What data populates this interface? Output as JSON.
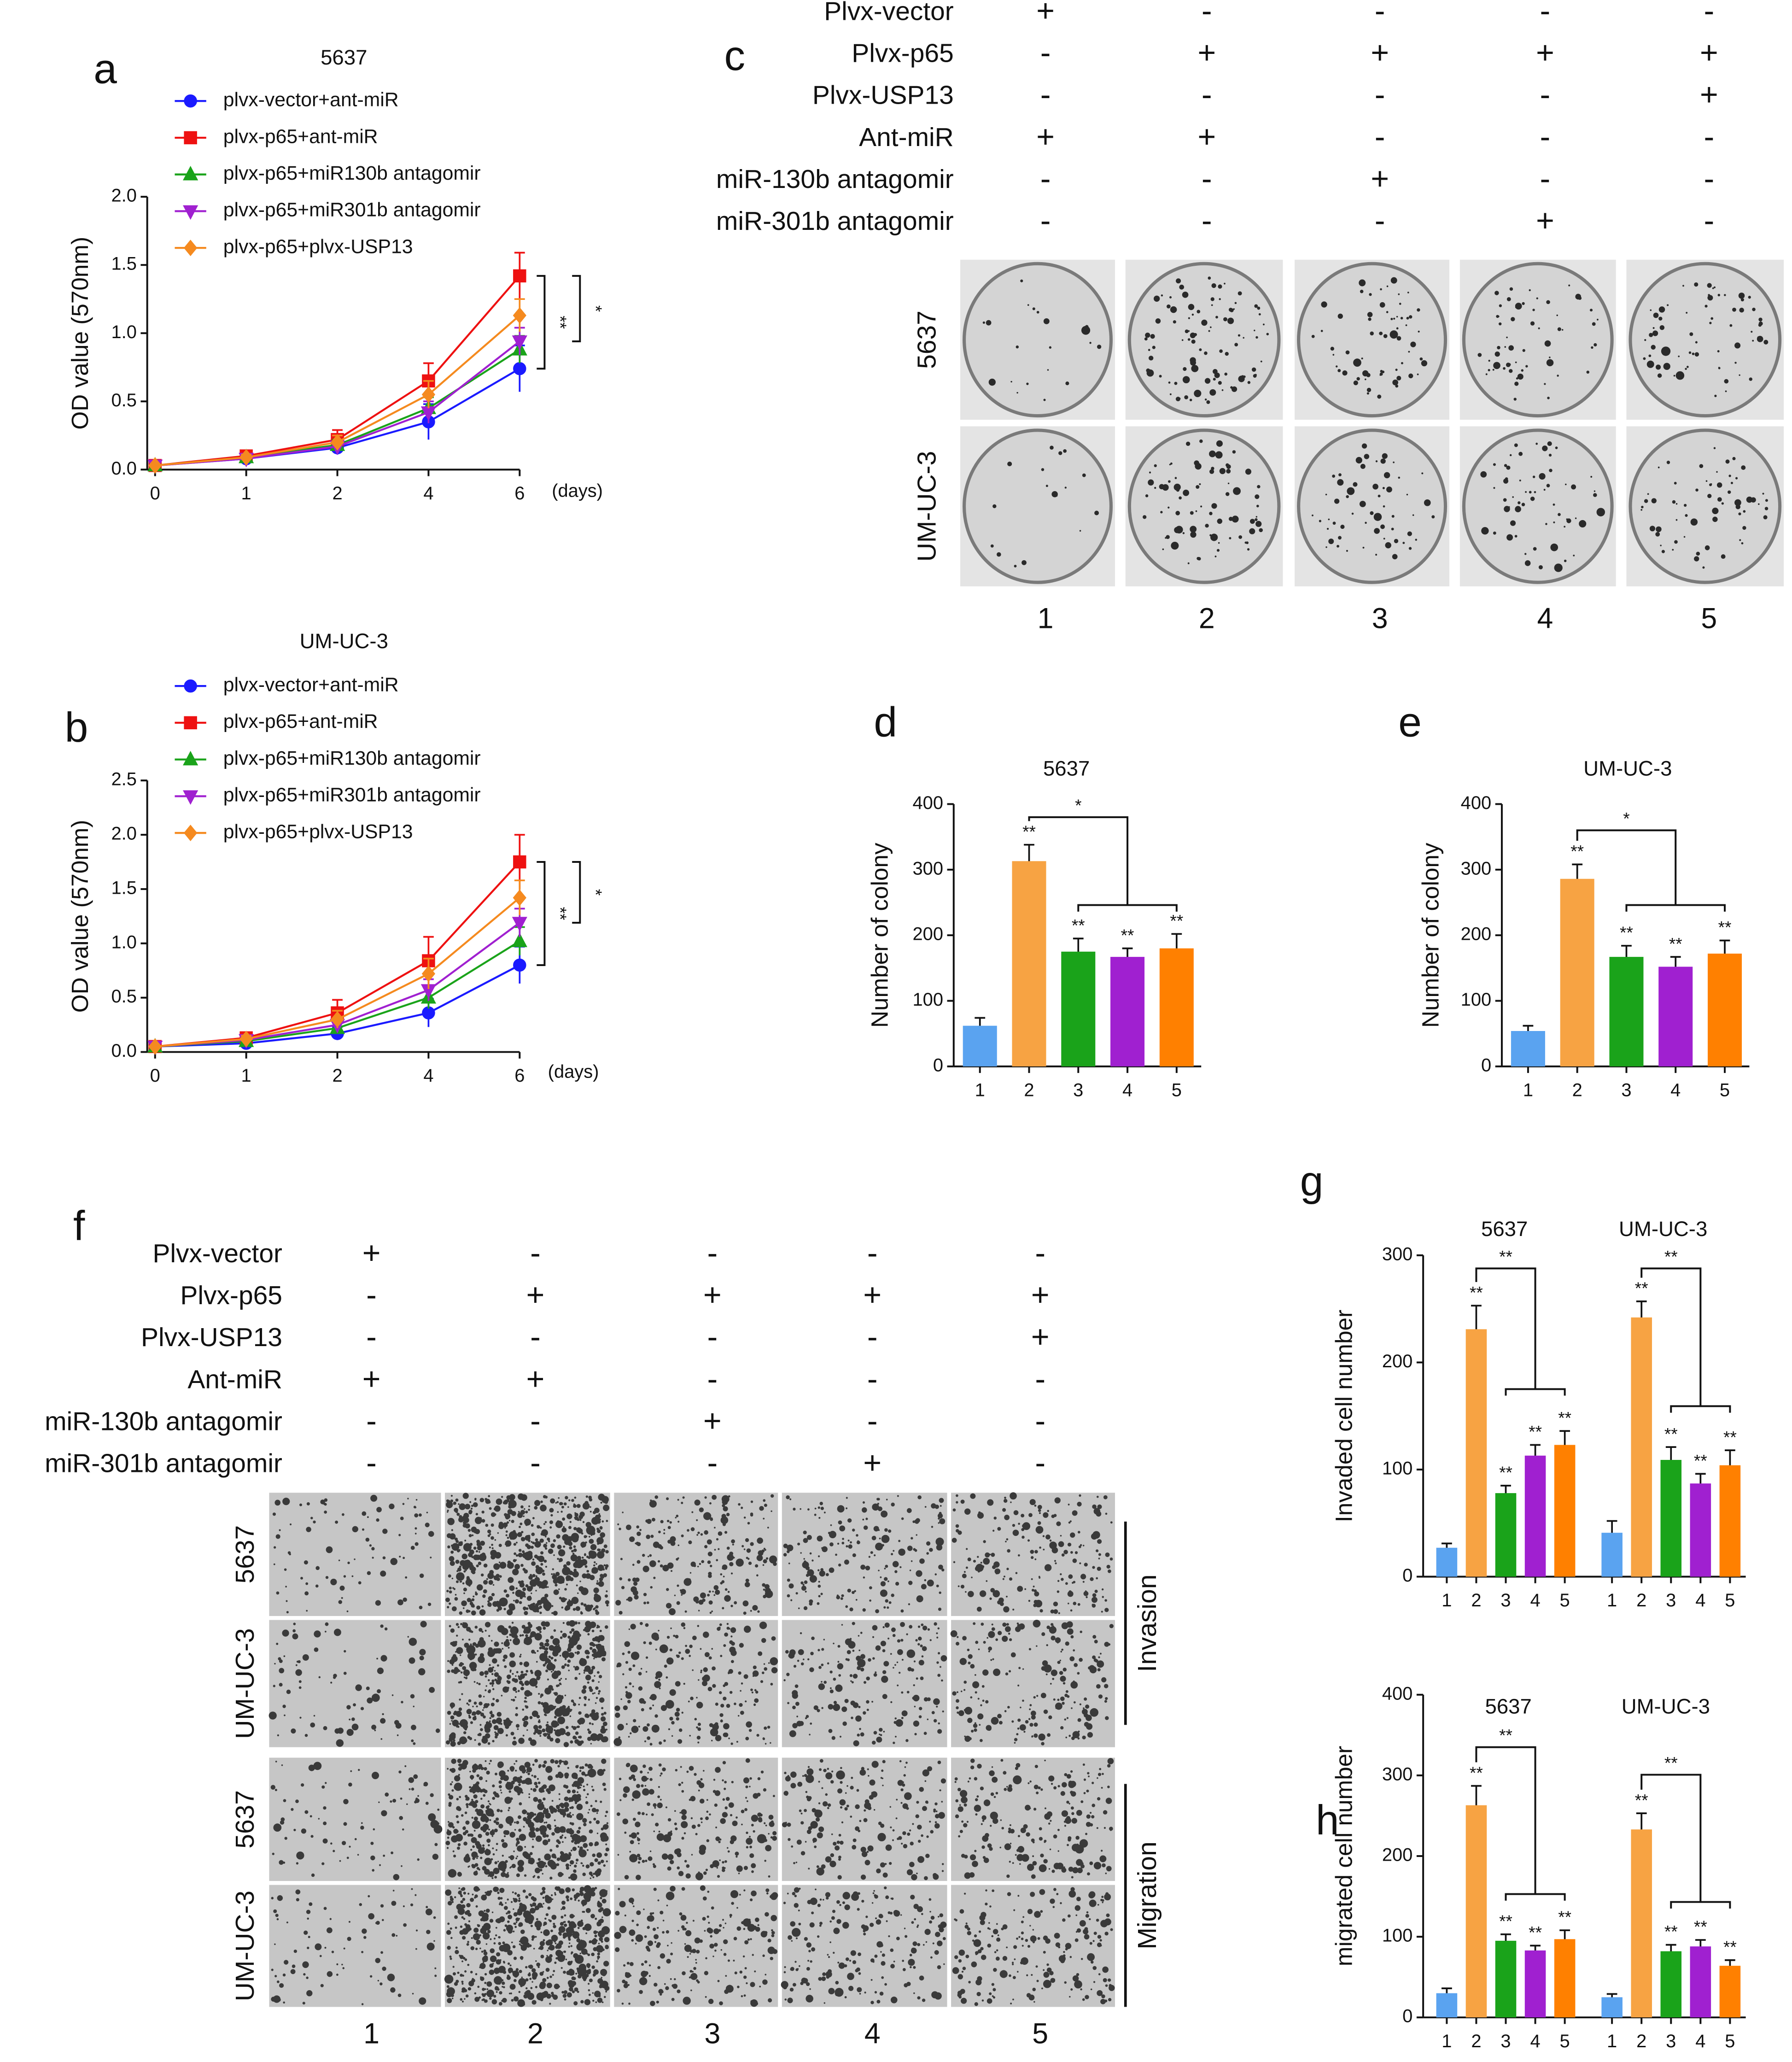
{
  "chart_data": [
    {
      "type": "line",
      "panel_label": "a",
      "title": "5637",
      "ylabel": "OD value (570nm)",
      "xlabel": "(days)",
      "categories": [
        "0",
        "1",
        "2",
        "4",
        "6"
      ],
      "ylim": [
        0,
        2.0
      ],
      "yticks": [
        {
          "value": 0,
          "label": "0.0"
        },
        0.5,
        {
          "value": 1,
          "label": "1.0"
        },
        1.5,
        {
          "value": 2,
          "label": "2.0"
        }
      ],
      "series": [
        {
          "name": "plvx-vector+ant-miR",
          "color": "#1a1aff",
          "marker": "circle",
          "values": [
            0.03,
            0.08,
            0.16,
            0.35,
            0.74
          ],
          "errors": [
            0.01,
            0.02,
            0.05,
            0.13,
            0.17
          ]
        },
        {
          "name": "plvx-p65+ant-miR",
          "color": "#ee1111",
          "marker": "square",
          "values": [
            0.03,
            0.1,
            0.22,
            0.65,
            1.42
          ],
          "errors": [
            0.01,
            0.02,
            0.07,
            0.13,
            0.17
          ]
        },
        {
          "name": "plvx-p65+miR130b antagomir",
          "color": "#1aa31a",
          "marker": "triangle",
          "values": [
            0.03,
            0.09,
            0.18,
            0.45,
            0.88
          ],
          "errors": [
            0.01,
            0.02,
            0.04,
            0.08,
            0.1
          ]
        },
        {
          "name": "plvx-p65+miR301b antagomir",
          "color": "#a020d0",
          "marker": "triangle-down",
          "values": [
            0.03,
            0.08,
            0.17,
            0.42,
            0.94
          ],
          "errors": [
            0.01,
            0.02,
            0.04,
            0.08,
            0.1
          ]
        },
        {
          "name": "plvx-p65+plvx-USP13",
          "color": "#f58a1f",
          "marker": "diamond",
          "values": [
            0.03,
            0.09,
            0.2,
            0.55,
            1.13
          ],
          "errors": [
            0.01,
            0.02,
            0.05,
            0.1,
            0.12
          ]
        }
      ],
      "annotations": [
        "**",
        "*"
      ]
    },
    {
      "type": "line",
      "panel_label": "b",
      "title": "UM-UC-3",
      "ylabel": "OD value (570nm)",
      "xlabel": "(days)",
      "categories": [
        "0",
        "1",
        "2",
        "4",
        "6"
      ],
      "ylim": [
        0,
        2.5
      ],
      "yticks": [
        {
          "value": 0,
          "label": "0.0"
        },
        0.5,
        {
          "value": 1,
          "label": "1.0"
        },
        1.5,
        {
          "value": 2,
          "label": "2.0"
        },
        2.5
      ],
      "series": [
        {
          "name": "plvx-vector+ant-miR",
          "color": "#1a1aff",
          "marker": "circle",
          "values": [
            0.05,
            0.08,
            0.17,
            0.36,
            0.8
          ],
          "errors": [
            0.01,
            0.02,
            0.06,
            0.13,
            0.17
          ]
        },
        {
          "name": "plvx-p65+ant-miR",
          "color": "#ee1111",
          "marker": "square",
          "values": [
            0.05,
            0.13,
            0.36,
            0.84,
            1.75
          ],
          "errors": [
            0.01,
            0.03,
            0.12,
            0.22,
            0.25
          ]
        },
        {
          "name": "plvx-p65+miR130b antagomir",
          "color": "#1aa31a",
          "marker": "triangle",
          "values": [
            0.05,
            0.1,
            0.22,
            0.5,
            1.02
          ],
          "errors": [
            0.01,
            0.02,
            0.05,
            0.1,
            0.13
          ]
        },
        {
          "name": "plvx-p65+miR301b antagomir",
          "color": "#a020d0",
          "marker": "triangle-down",
          "values": [
            0.05,
            0.11,
            0.25,
            0.57,
            1.19
          ],
          "errors": [
            0.01,
            0.02,
            0.05,
            0.1,
            0.13
          ]
        },
        {
          "name": "plvx-p65+plvx-USP13",
          "color": "#f58a1f",
          "marker": "diamond",
          "values": [
            0.05,
            0.12,
            0.3,
            0.72,
            1.42
          ],
          "errors": [
            0.01,
            0.03,
            0.08,
            0.14,
            0.16
          ]
        }
      ],
      "annotations": [
        "**",
        "*"
      ]
    },
    {
      "type": "bar",
      "panel_label": "d",
      "title": "5637",
      "ylabel": "Number of colony",
      "categories": [
        "1",
        "2",
        "3",
        "4",
        "5"
      ],
      "values": [
        62,
        313,
        175,
        167,
        180
      ],
      "errors": [
        12,
        25,
        20,
        13,
        22
      ],
      "colors": [
        "#5aa3f0",
        "#f7a343",
        "#1aa31a",
        "#a020d0",
        "#ff8000"
      ],
      "ylim": [
        0,
        400
      ],
      "yticks": [
        0,
        100,
        200,
        300,
        400
      ],
      "significance": [
        null,
        "**",
        "**",
        "**",
        "**"
      ],
      "annotations": [
        "*"
      ]
    },
    {
      "type": "bar",
      "panel_label": "e",
      "title": "UM-UC-3",
      "ylabel": "Number of colony",
      "categories": [
        "1",
        "2",
        "3",
        "4",
        "5"
      ],
      "values": [
        54,
        286,
        167,
        152,
        172
      ],
      "errors": [
        8,
        22,
        17,
        15,
        20
      ],
      "colors": [
        "#5aa3f0",
        "#f7a343",
        "#1aa31a",
        "#a020d0",
        "#ff8000"
      ],
      "ylim": [
        0,
        400
      ],
      "yticks": [
        0,
        100,
        200,
        300,
        400
      ],
      "significance": [
        null,
        "**",
        "**",
        "**",
        "**"
      ],
      "annotations": [
        "*"
      ]
    },
    {
      "type": "grouped_bar",
      "panel_label": "g",
      "ylabel": "Invaded cell number",
      "categories": [
        "1",
        "2",
        "3",
        "4",
        "5"
      ],
      "colors": [
        "#5aa3f0",
        "#f7a343",
        "#1aa31a",
        "#a020d0",
        "#ff8000"
      ],
      "ylim": [
        0,
        300
      ],
      "yticks": [
        0,
        100,
        200,
        300
      ],
      "groups": [
        {
          "name": "5637",
          "values": [
            27,
            231,
            78,
            113,
            123
          ],
          "errors": [
            4,
            22,
            7,
            10,
            13
          ],
          "significance": [
            null,
            "**",
            "**",
            "**",
            "**"
          ],
          "annotation": "**"
        },
        {
          "name": "UM-UC-3",
          "values": [
            41,
            242,
            109,
            87,
            104
          ],
          "errors": [
            11,
            15,
            12,
            9,
            14
          ],
          "significance": [
            null,
            "**",
            "**",
            "**",
            "**"
          ],
          "annotation": "**"
        }
      ]
    },
    {
      "type": "grouped_bar",
      "panel_label": "h",
      "ylabel": "migrated cell number",
      "categories": [
        "1",
        "2",
        "3",
        "4",
        "5"
      ],
      "colors": [
        "#5aa3f0",
        "#f7a343",
        "#1aa31a",
        "#a020d0",
        "#ff8000"
      ],
      "ylim": [
        0,
        400
      ],
      "yticks": [
        0,
        100,
        200,
        300,
        400
      ],
      "groups": [
        {
          "name": "5637",
          "values": [
            30,
            263,
            95,
            83,
            97
          ],
          "errors": [
            6,
            24,
            8,
            6,
            11
          ],
          "significance": [
            null,
            "**",
            "**",
            "**",
            "**"
          ],
          "annotation": "**"
        },
        {
          "name": "UM-UC-3",
          "values": [
            25,
            233,
            82,
            88,
            64
          ],
          "errors": [
            4,
            20,
            8,
            8,
            7
          ],
          "significance": [
            null,
            "**",
            "**",
            "**",
            "**"
          ],
          "annotation": "**"
        }
      ]
    }
  ],
  "treatment_tables": [
    {
      "panel_label": "c",
      "columns": [
        "1",
        "2",
        "3",
        "4",
        "5"
      ],
      "rows": [
        {
          "name": "Plvx-vector",
          "marks": [
            "+",
            "-",
            "-",
            "-",
            "-"
          ]
        },
        {
          "name": "Plvx-p65",
          "marks": [
            "-",
            "+",
            "+",
            "+",
            "+"
          ]
        },
        {
          "name": "Plvx-USP13",
          "marks": [
            "-",
            "-",
            "-",
            "-",
            "+"
          ]
        },
        {
          "name": "Ant-miR",
          "marks": [
            "+",
            "+",
            "-",
            "-",
            "-"
          ]
        },
        {
          "name": "miR-130b antagomir",
          "marks": [
            "-",
            "-",
            "+",
            "-",
            "-"
          ]
        },
        {
          "name": "miR-301b antagomir",
          "marks": [
            "-",
            "-",
            "-",
            "+",
            "-"
          ]
        }
      ],
      "image_rows": [
        "5637",
        "UM-UC-3"
      ]
    },
    {
      "panel_label": "f",
      "columns": [
        "1",
        "2",
        "3",
        "4",
        "5"
      ],
      "rows": [
        {
          "name": "Plvx-vector",
          "marks": [
            "+",
            "-",
            "-",
            "-",
            "-"
          ]
        },
        {
          "name": "Plvx-p65",
          "marks": [
            "-",
            "+",
            "+",
            "+",
            "+"
          ]
        },
        {
          "name": "Plvx-USP13",
          "marks": [
            "-",
            "-",
            "-",
            "-",
            "+"
          ]
        },
        {
          "name": "Ant-miR",
          "marks": [
            "+",
            "+",
            "-",
            "-",
            "-"
          ]
        },
        {
          "name": "miR-130b antagomir",
          "marks": [
            "-",
            "-",
            "+",
            "-",
            "-"
          ]
        },
        {
          "name": "miR-301b antagomir",
          "marks": [
            "-",
            "-",
            "-",
            "+",
            "-"
          ]
        }
      ],
      "image_rows": [
        "5637",
        "UM-UC-3",
        "5637",
        "UM-UC-3"
      ],
      "sections": [
        "Invasion",
        "Migration"
      ]
    }
  ]
}
